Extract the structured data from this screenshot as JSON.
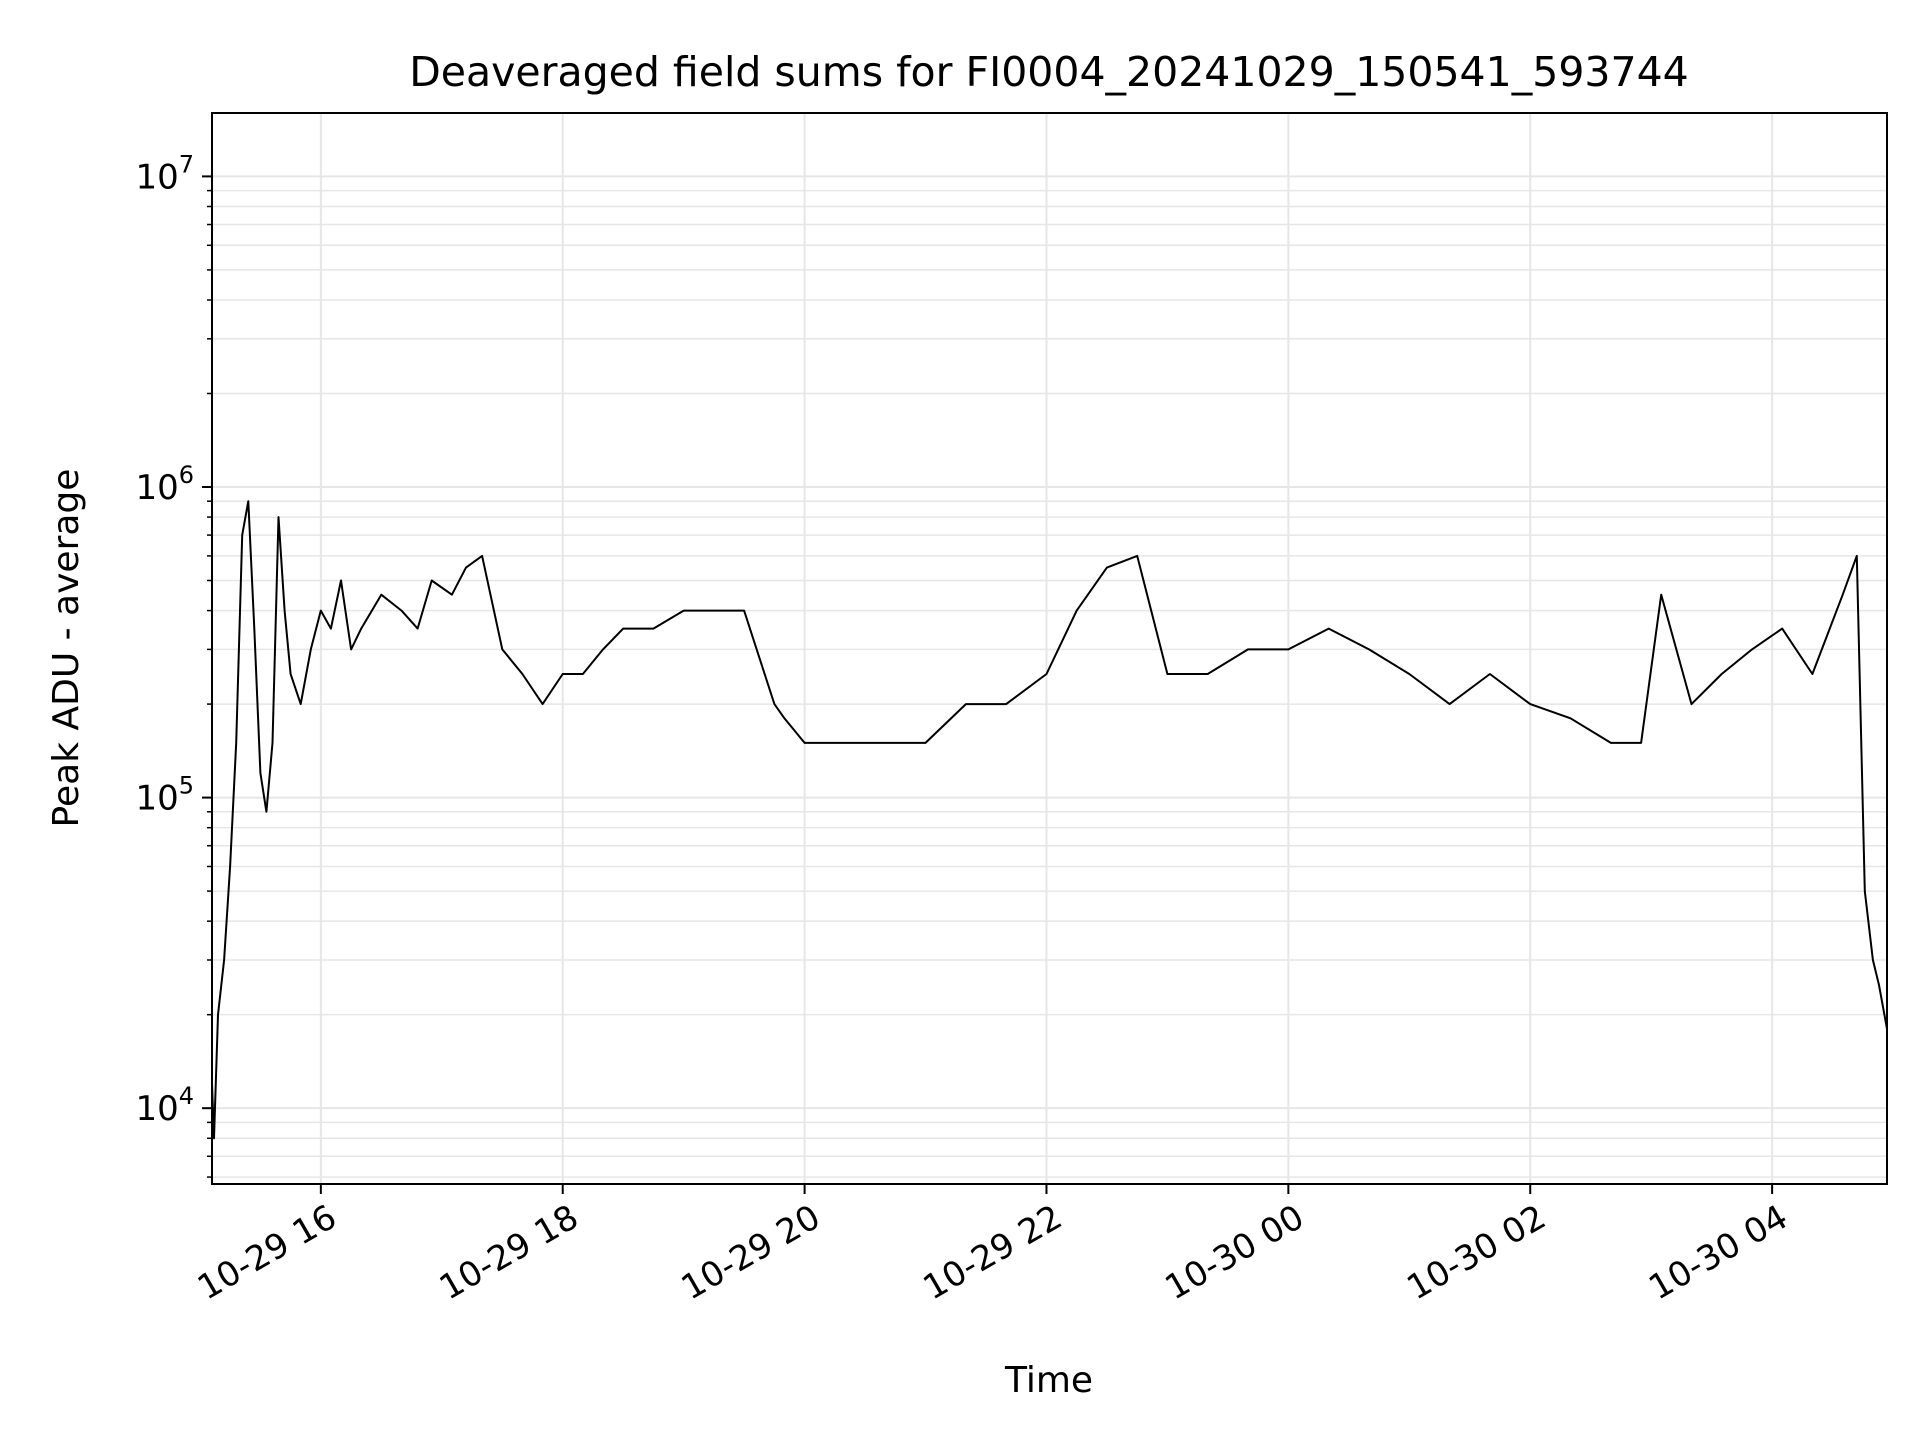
{
  "chart_data": {
    "type": "line",
    "title": "Deaveraged field sums for FI0004_20241029_150541_593744",
    "xlabel": "Time",
    "ylabel": "Peak ADU - average",
    "yscale": "log",
    "grid": true,
    "grid_minor_y": true,
    "line_color": "#000000",
    "grid_color": "#e6e6e6",
    "xlim": [
      "2024-10-29 15:06",
      "2024-10-30 04:57"
    ],
    "ylim": [
      5700,
      16000000
    ],
    "x_tick_labels": [
      "10-29 16",
      "10-29 18",
      "10-29 20",
      "10-29 22",
      "10-30 00",
      "10-30 02",
      "10-30 04"
    ],
    "y_tick_labels": [
      {
        "base": "10",
        "exp": "4",
        "value": 10000
      },
      {
        "base": "10",
        "exp": "5",
        "value": 100000
      },
      {
        "base": "10",
        "exp": "6",
        "value": 1000000
      },
      {
        "base": "10",
        "exp": "7",
        "value": 10000000
      }
    ],
    "series": [
      {
        "x": [
          "2024-10-29 15:06",
          "2024-10-29 15:07",
          "2024-10-29 15:09",
          "2024-10-29 15:12",
          "2024-10-29 15:15",
          "2024-10-29 15:18",
          "2024-10-29 15:21",
          "2024-10-29 15:24",
          "2024-10-29 15:27",
          "2024-10-29 15:30",
          "2024-10-29 15:33",
          "2024-10-29 15:36",
          "2024-10-29 15:39",
          "2024-10-29 15:42",
          "2024-10-29 15:45",
          "2024-10-29 15:50",
          "2024-10-29 15:55",
          "2024-10-29 16:00",
          "2024-10-29 16:05",
          "2024-10-29 16:10",
          "2024-10-29 16:15",
          "2024-10-29 16:20",
          "2024-10-29 16:30",
          "2024-10-29 16:40",
          "2024-10-29 16:48",
          "2024-10-29 16:55",
          "2024-10-29 17:05",
          "2024-10-29 17:12",
          "2024-10-29 17:20",
          "2024-10-29 17:30",
          "2024-10-29 17:40",
          "2024-10-29 17:50",
          "2024-10-29 18:00",
          "2024-10-29 18:10",
          "2024-10-29 18:20",
          "2024-10-29 18:30",
          "2024-10-29 18:45",
          "2024-10-29 19:00",
          "2024-10-29 19:15",
          "2024-10-29 19:30",
          "2024-10-29 19:45",
          "2024-10-29 19:50",
          "2024-10-29 20:00",
          "2024-10-29 20:20",
          "2024-10-29 20:40",
          "2024-10-29 21:00",
          "2024-10-29 21:20",
          "2024-10-29 21:40",
          "2024-10-29 22:00",
          "2024-10-29 22:15",
          "2024-10-29 22:30",
          "2024-10-29 22:45",
          "2024-10-29 23:00",
          "2024-10-29 23:20",
          "2024-10-29 23:40",
          "2024-10-30 00:00",
          "2024-10-30 00:20",
          "2024-10-30 00:40",
          "2024-10-30 01:00",
          "2024-10-30 01:20",
          "2024-10-30 01:40",
          "2024-10-30 02:00",
          "2024-10-30 02:20",
          "2024-10-30 02:40",
          "2024-10-30 02:55",
          "2024-10-30 03:05",
          "2024-10-30 03:20",
          "2024-10-30 03:35",
          "2024-10-30 03:50",
          "2024-10-30 04:05",
          "2024-10-30 04:20",
          "2024-10-30 04:35",
          "2024-10-30 04:42",
          "2024-10-30 04:46",
          "2024-10-30 04:50",
          "2024-10-30 04:53",
          "2024-10-30 04:57"
        ],
        "y": [
          12000,
          8000,
          20000,
          30000,
          60000,
          150000,
          700000,
          900000,
          350000,
          120000,
          90000,
          150000,
          800000,
          400000,
          250000,
          200000,
          300000,
          400000,
          350000,
          500000,
          300000,
          350000,
          450000,
          400000,
          350000,
          500000,
          450000,
          550000,
          600000,
          300000,
          250000,
          200000,
          250000,
          250000,
          300000,
          350000,
          350000,
          400000,
          400000,
          400000,
          200000,
          180000,
          150000,
          150000,
          150000,
          150000,
          200000,
          200000,
          250000,
          400000,
          550000,
          600000,
          250000,
          250000,
          300000,
          300000,
          350000,
          300000,
          250000,
          200000,
          250000,
          200000,
          180000,
          150000,
          150000,
          450000,
          200000,
          250000,
          300000,
          350000,
          250000,
          450000,
          600000,
          50000,
          30000,
          25000,
          18000
        ]
      }
    ]
  }
}
